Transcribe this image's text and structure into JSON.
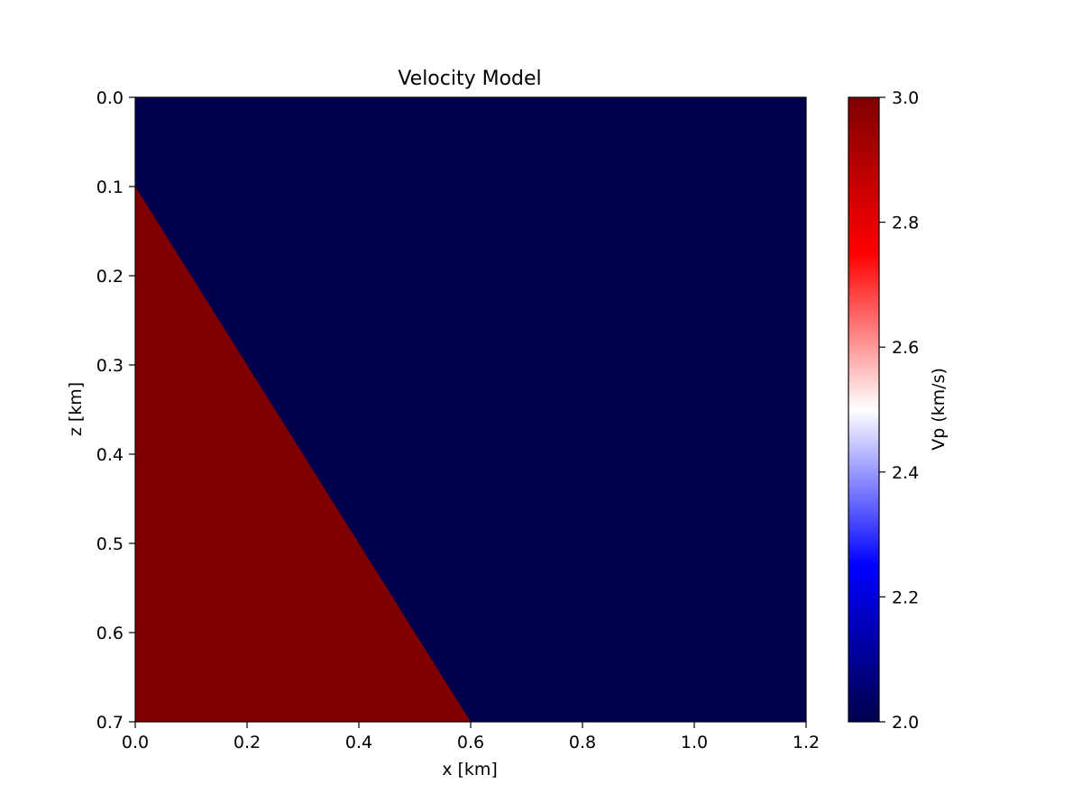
{
  "chart_data": {
    "type": "heatmap",
    "title": "Velocity Model",
    "xlabel": "x [km]",
    "ylabel": "z [km]",
    "xlim": [
      0.0,
      1.2
    ],
    "ylim": [
      0.7,
      0.0
    ],
    "x_ticks": [
      "0.0",
      "0.2",
      "0.4",
      "0.6",
      "0.8",
      "1.0",
      "1.2"
    ],
    "y_ticks": [
      "0.0",
      "0.1",
      "0.2",
      "0.3",
      "0.4",
      "0.5",
      "0.6",
      "0.7"
    ],
    "background_region": {
      "vp": 2.0
    },
    "wedge_region": {
      "vp": 3.0,
      "vertices": [
        {
          "x": 0.0,
          "z": 0.1
        },
        {
          "x": 0.6,
          "z": 0.7
        },
        {
          "x": 0.0,
          "z": 0.7
        }
      ]
    },
    "colorbar": {
      "label": "Vp (km/s)",
      "colormap": "seismic",
      "range": [
        2.0,
        3.0
      ],
      "ticks": [
        "2.0",
        "2.2",
        "2.4",
        "2.6",
        "2.8",
        "3.0"
      ],
      "colors": {
        "low": "#00004c",
        "mid_low": "#0000ff",
        "mid": "#ffffff",
        "mid_high": "#ff0000",
        "high": "#7f0000"
      }
    },
    "grid": false
  }
}
